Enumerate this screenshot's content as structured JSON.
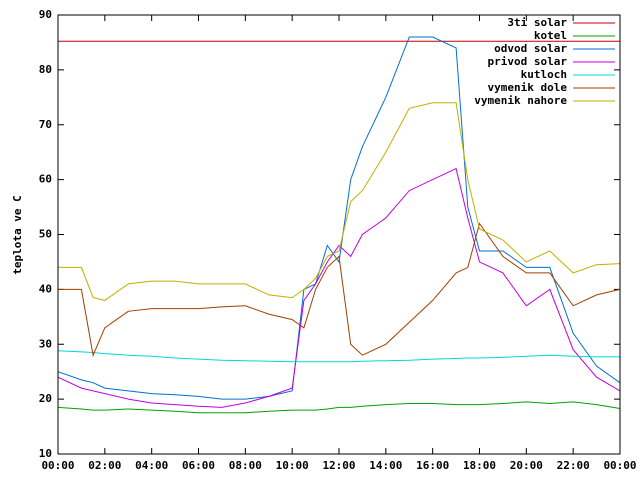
{
  "chart_data": {
    "type": "line",
    "ylabel": "teplota ve C",
    "x": [
      0,
      1,
      1.5,
      2,
      3,
      4,
      5,
      6,
      7,
      8,
      9,
      10,
      10.5,
      11,
      11.5,
      12,
      12.5,
      13,
      14,
      15,
      16,
      17,
      17.5,
      18,
      19,
      20,
      21,
      22,
      23,
      24
    ],
    "xlim": [
      0,
      24
    ],
    "xticks": [
      {
        "value": 0,
        "label": "00:00"
      },
      {
        "value": 2,
        "label": "02:00"
      },
      {
        "value": 4,
        "label": "04:00"
      },
      {
        "value": 6,
        "label": "06:00"
      },
      {
        "value": 8,
        "label": "08:00"
      },
      {
        "value": 10,
        "label": "10:00"
      },
      {
        "value": 12,
        "label": "12:00"
      },
      {
        "value": 14,
        "label": "14:00"
      },
      {
        "value": 16,
        "label": "16:00"
      },
      {
        "value": 18,
        "label": "18:00"
      },
      {
        "value": 20,
        "label": "20:00"
      },
      {
        "value": 22,
        "label": "22:00"
      },
      {
        "value": 24,
        "label": "00:00"
      }
    ],
    "ylim": [
      10,
      90
    ],
    "yticks": [
      10,
      20,
      30,
      40,
      50,
      60,
      70,
      80,
      90
    ],
    "legend": "top-right",
    "series": [
      {
        "name": "3ti solar",
        "color": "#c00000",
        "values": [
          85.2,
          85.2,
          85.2,
          85.2,
          85.2,
          85.2,
          85.2,
          85.2,
          85.2,
          85.2,
          85.2,
          85.2,
          85.2,
          85.2,
          85.2,
          85.2,
          85.2,
          85.2,
          85.2,
          85.2,
          85.2,
          85.2,
          85.2,
          85.2,
          85.2,
          85.2,
          85.2,
          85.2,
          85.2,
          85.2
        ]
      },
      {
        "name": "kotel",
        "color": "#00a000",
        "values": [
          18.5,
          18.2,
          18,
          18,
          18.2,
          18,
          17.8,
          17.5,
          17.5,
          17.5,
          17.8,
          18,
          18,
          18,
          18.2,
          18.5,
          18.5,
          18.7,
          19,
          19.2,
          19.2,
          19,
          19,
          19,
          19.2,
          19.5,
          19.2,
          19.5,
          19,
          18.3
        ]
      },
      {
        "name": "odvod solar",
        "color": "#0070d0",
        "values": [
          25,
          23.5,
          23,
          22,
          21.5,
          21,
          20.8,
          20.5,
          20,
          20,
          20.5,
          21.5,
          40,
          41,
          48,
          45,
          60,
          66,
          75,
          86,
          86,
          84,
          55,
          47,
          47,
          44,
          44,
          32,
          26,
          23
        ]
      },
      {
        "name": "privod solar",
        "color": "#c000e0",
        "values": [
          24,
          22,
          21.5,
          21,
          20,
          19.3,
          19,
          18.7,
          18.5,
          19.3,
          20.5,
          22,
          38,
          41,
          45,
          48,
          46,
          50,
          53,
          58,
          60,
          62,
          53,
          45,
          43,
          37,
          40,
          29,
          24,
          21.5
        ]
      },
      {
        "name": "kutloch",
        "color": "#00d8d8",
        "values": [
          28.8,
          28.6,
          28.5,
          28.3,
          28,
          27.8,
          27.5,
          27.3,
          27.1,
          27,
          26.9,
          26.8,
          26.8,
          26.8,
          26.8,
          26.8,
          26.8,
          26.9,
          27,
          27.1,
          27.3,
          27.4,
          27.5,
          27.5,
          27.6,
          27.8,
          28,
          27.8,
          27.7,
          27.7
        ]
      },
      {
        "name": "vymenik dole",
        "color": "#a04000",
        "values": [
          40,
          40,
          28,
          33,
          36,
          36.5,
          36.5,
          36.5,
          36.8,
          37,
          35.5,
          34.5,
          33,
          40,
          44,
          46,
          30,
          28,
          30,
          34,
          38,
          43,
          44,
          52,
          46,
          43,
          43,
          37,
          39,
          40
        ]
      },
      {
        "name": "vymenik nahore",
        "color": "#c0b000",
        "values": [
          44,
          44,
          38.5,
          38,
          41,
          41.5,
          41.5,
          41,
          41,
          41,
          39,
          38.5,
          40,
          42,
          46,
          47,
          56,
          58,
          65,
          73,
          74,
          74,
          60,
          51,
          49,
          45,
          47,
          43,
          44.5,
          44.7
        ]
      }
    ]
  }
}
